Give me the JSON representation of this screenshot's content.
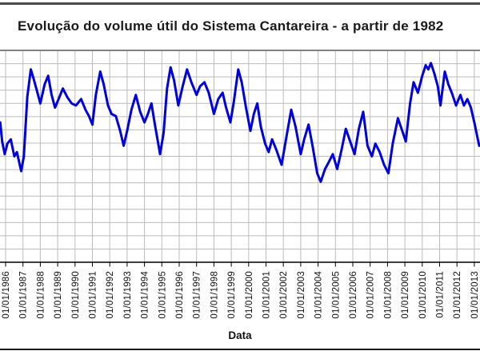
{
  "page": {
    "title": "Evolução do volume útil do Sistema Cantareira - a partir de 1982"
  },
  "chart_data": {
    "type": "line",
    "title": "Evolução do volume útil do Sistema Cantareira - a partir de 1982",
    "xlabel": "Data",
    "grid": true,
    "legend": "none",
    "x_tick_labels": [
      "01/01/1986",
      "01/01/1987",
      "01/01/1988",
      "01/01/1989",
      "01/01/1990",
      "01/01/1991",
      "01/01/1992",
      "01/01/1993",
      "01/01/1994",
      "01/01/1995",
      "01/01/1996",
      "01/01/1997",
      "01/01/1998",
      "01/01/1999",
      "01/01/2000",
      "01/01/2001",
      "01/01/2002",
      "01/01/2003",
      "01/01/2004",
      "01/01/2005",
      "01/01/2006",
      "01/01/2007",
      "01/01/2008",
      "01/01/2009",
      "01/01/2010",
      "01/01/2011",
      "01/01/2012",
      "01/01/2013"
    ],
    "x_range_years": [
      1985.69,
      2013.3
    ],
    "y_axis": {
      "visible": false,
      "note": "y-axis tick labels are cropped out of the visible image; point values below are percent of the visible plot height (0 = bottom axis, 100 = top frame)"
    },
    "ylim": [
      0,
      100
    ],
    "series": [
      {
        "name": "Volume útil",
        "color": "#0000dd",
        "points": [
          [
            1985.69,
            66
          ],
          [
            1985.8,
            57
          ],
          [
            1985.95,
            51
          ],
          [
            1986.1,
            56
          ],
          [
            1986.3,
            58
          ],
          [
            1986.5,
            50
          ],
          [
            1986.65,
            52
          ],
          [
            1986.9,
            43
          ],
          [
            1987.05,
            50
          ],
          [
            1987.25,
            78
          ],
          [
            1987.45,
            91
          ],
          [
            1987.6,
            87
          ],
          [
            1987.8,
            81
          ],
          [
            1988.0,
            75
          ],
          [
            1988.25,
            84
          ],
          [
            1988.45,
            88
          ],
          [
            1988.65,
            79
          ],
          [
            1988.85,
            73
          ],
          [
            1989.05,
            77
          ],
          [
            1989.3,
            82
          ],
          [
            1989.55,
            78
          ],
          [
            1989.8,
            75
          ],
          [
            1990.05,
            74
          ],
          [
            1990.35,
            77
          ],
          [
            1990.6,
            72
          ],
          [
            1990.8,
            69
          ],
          [
            1991.0,
            65
          ],
          [
            1991.2,
            79
          ],
          [
            1991.45,
            90
          ],
          [
            1991.65,
            84
          ],
          [
            1991.9,
            74
          ],
          [
            1992.1,
            70
          ],
          [
            1992.35,
            69
          ],
          [
            1992.6,
            62
          ],
          [
            1992.8,
            55
          ],
          [
            1993.0,
            62
          ],
          [
            1993.25,
            72
          ],
          [
            1993.5,
            79
          ],
          [
            1993.75,
            71
          ],
          [
            1994.0,
            66
          ],
          [
            1994.2,
            70
          ],
          [
            1994.4,
            75
          ],
          [
            1994.6,
            65
          ],
          [
            1994.9,
            51
          ],
          [
            1995.1,
            61
          ],
          [
            1995.3,
            82
          ],
          [
            1995.5,
            92
          ],
          [
            1995.7,
            86
          ],
          [
            1995.95,
            74
          ],
          [
            1996.2,
            83
          ],
          [
            1996.45,
            91
          ],
          [
            1996.7,
            85
          ],
          [
            1997.0,
            79
          ],
          [
            1997.2,
            83
          ],
          [
            1997.45,
            85
          ],
          [
            1997.7,
            80
          ],
          [
            1998.0,
            70
          ],
          [
            1998.25,
            77
          ],
          [
            1998.5,
            80
          ],
          [
            1998.7,
            73
          ],
          [
            1998.95,
            66
          ],
          [
            1999.15,
            76
          ],
          [
            1999.4,
            91
          ],
          [
            1999.6,
            85
          ],
          [
            1999.85,
            73
          ],
          [
            2000.1,
            62
          ],
          [
            2000.3,
            70
          ],
          [
            2000.5,
            75
          ],
          [
            2000.7,
            64
          ],
          [
            2000.95,
            56
          ],
          [
            2001.15,
            52
          ],
          [
            2001.35,
            58
          ],
          [
            2001.6,
            53
          ],
          [
            2001.9,
            46
          ],
          [
            2002.15,
            58
          ],
          [
            2002.45,
            72
          ],
          [
            2002.7,
            64
          ],
          [
            2003.0,
            51
          ],
          [
            2003.2,
            58
          ],
          [
            2003.45,
            65
          ],
          [
            2003.7,
            54
          ],
          [
            2003.95,
            42
          ],
          [
            2004.15,
            38
          ],
          [
            2004.4,
            44
          ],
          [
            2004.6,
            47
          ],
          [
            2004.85,
            51
          ],
          [
            2005.1,
            44
          ],
          [
            2005.35,
            53
          ],
          [
            2005.6,
            63
          ],
          [
            2005.85,
            57
          ],
          [
            2006.1,
            51
          ],
          [
            2006.35,
            63
          ],
          [
            2006.6,
            71
          ],
          [
            2006.85,
            55
          ],
          [
            2007.1,
            50
          ],
          [
            2007.3,
            56
          ],
          [
            2007.55,
            52
          ],
          [
            2007.8,
            46
          ],
          [
            2008.05,
            42
          ],
          [
            2008.3,
            56
          ],
          [
            2008.6,
            68
          ],
          [
            2008.85,
            62
          ],
          [
            2009.05,
            57
          ],
          [
            2009.3,
            75
          ],
          [
            2009.5,
            85
          ],
          [
            2009.75,
            80
          ],
          [
            2010.0,
            88
          ],
          [
            2010.2,
            93
          ],
          [
            2010.35,
            91
          ],
          [
            2010.5,
            94
          ],
          [
            2010.7,
            89
          ],
          [
            2010.9,
            83
          ],
          [
            2011.05,
            74
          ],
          [
            2011.3,
            90
          ],
          [
            2011.5,
            84
          ],
          [
            2011.7,
            80
          ],
          [
            2011.95,
            74
          ],
          [
            2012.2,
            79
          ],
          [
            2012.4,
            74
          ],
          [
            2012.6,
            77
          ],
          [
            2012.8,
            73
          ],
          [
            2013.0,
            66
          ],
          [
            2013.28,
            55
          ]
        ]
      }
    ],
    "colors": {
      "line": "#0000dd",
      "gridline": "#bcbcbc",
      "plot_top_frame": "#808080",
      "axis": "#000000"
    }
  }
}
